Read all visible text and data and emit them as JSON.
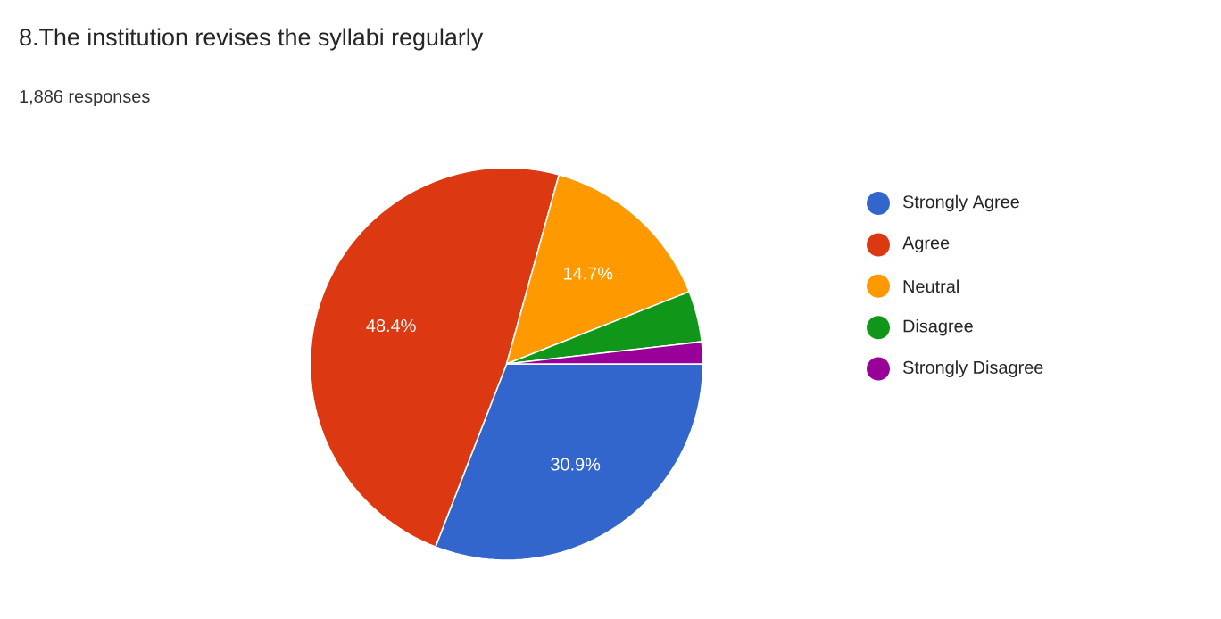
{
  "chart_data": {
    "type": "pie",
    "title": "8.The institution revises the syllabi regularly",
    "subtitle": "1,886 responses",
    "categories": [
      "Strongly Agree",
      "Agree",
      "Neutral",
      "Disagree",
      "Strongly Disagree"
    ],
    "values": [
      30.9,
      48.4,
      14.7,
      4.2,
      1.8
    ],
    "value_labels": [
      "30.9%",
      "48.4%",
      "14.7%",
      null,
      null
    ],
    "colors": [
      "#3366cc",
      "#dc3912",
      "#ff9900",
      "#109618",
      "#990099"
    ],
    "legend": "right"
  }
}
